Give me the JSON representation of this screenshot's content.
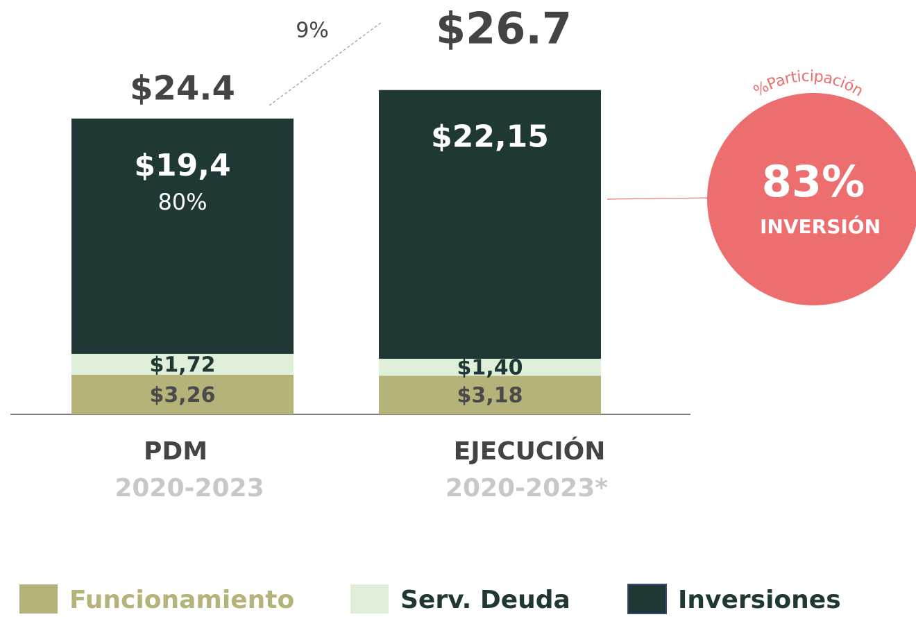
{
  "chart_data": {
    "type": "stacked_bar",
    "categories": [
      "PDM",
      "EJECUCIÓN"
    ],
    "category_subtitles": [
      "2020-2023",
      "2020-2023*"
    ],
    "series": [
      {
        "name": "Funcionamiento",
        "color": "#b5b37a",
        "label_color": "#4a4a4a",
        "values": [
          3.26,
          3.18
        ],
        "value_labels": [
          "$3,26",
          "$3,18"
        ]
      },
      {
        "name": "Serv. Deuda",
        "color": "#e0efda",
        "label_color": "#1f3835",
        "values": [
          1.72,
          1.4
        ],
        "value_labels": [
          "$1,72",
          "$1,40"
        ]
      },
      {
        "name": "Inversiones",
        "color": "#1f3835",
        "label_color": "#ffffff",
        "values": [
          19.4,
          22.15
        ],
        "value_labels": [
          "$19,4",
          "$22,15"
        ]
      }
    ],
    "totals": [
      24.4,
      26.7
    ],
    "total_labels": [
      "$24.4",
      "$26.7"
    ],
    "growth_label": "9%",
    "share_label": "80%",
    "highlight": {
      "title": "%Participación",
      "value": 83,
      "value_label": "83%",
      "subtitle": "INVERSIÓN",
      "color": "#ed6e6e"
    },
    "ylim": [
      0,
      27
    ]
  }
}
